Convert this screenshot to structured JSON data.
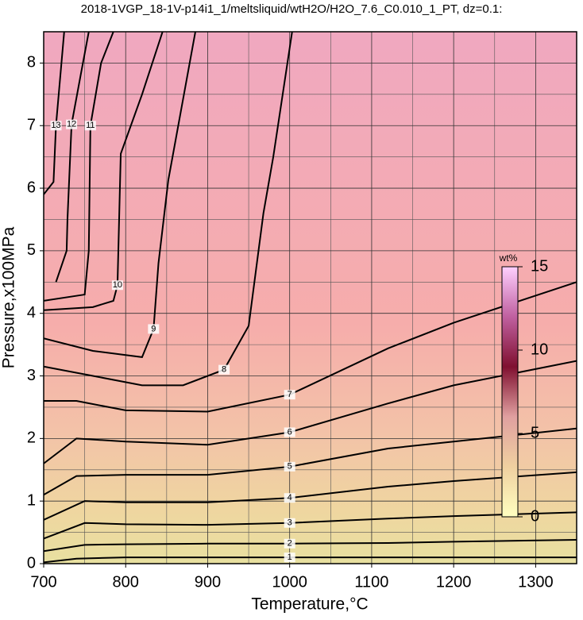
{
  "chart_data": {
    "type": "contour",
    "title": "2018-1VGP_18-1V-p14i1_1/meltsliquid/wtH2O/H2O_7.6_C0.010_1_PT, dz=0.1:",
    "xlabel": "Temperature,°C",
    "ylabel": "Pressure,x100MPa",
    "xlim": [
      700,
      1350
    ],
    "ylim": [
      0,
      8.5
    ],
    "xticks": [
      700,
      800,
      900,
      1000,
      1100,
      1200,
      1300
    ],
    "yticks": [
      0,
      1,
      2,
      3,
      4,
      5,
      6,
      7,
      8
    ],
    "xminorticks": [
      750,
      850,
      950,
      1050,
      1150,
      1250
    ],
    "yminorticks": [
      0.5,
      1.5,
      2.5,
      3.5,
      4.5,
      5.5,
      6.5,
      7.5
    ],
    "grid": true,
    "line_color": "#000000",
    "colorbar": {
      "label": "wt%",
      "lim": [
        0,
        15
      ],
      "ticks": [
        0,
        5,
        10,
        15
      ]
    },
    "contours": [
      {
        "level": 1,
        "x": [
          700,
          740,
          800,
          900,
          1000,
          1120,
          1200,
          1350
        ],
        "y": [
          0.02,
          0.08,
          0.1,
          0.1,
          0.1,
          0.1,
          0.1,
          0.1
        ]
      },
      {
        "level": 2,
        "x": [
          700,
          750,
          800,
          900,
          1000,
          1120,
          1200,
          1350
        ],
        "y": [
          0.2,
          0.3,
          0.31,
          0.32,
          0.32,
          0.33,
          0.35,
          0.38
        ]
      },
      {
        "level": 3,
        "x": [
          700,
          750,
          800,
          900,
          1000,
          1120,
          1200,
          1350
        ],
        "y": [
          0.4,
          0.65,
          0.63,
          0.62,
          0.65,
          0.72,
          0.76,
          0.82
        ]
      },
      {
        "level": 4,
        "x": [
          700,
          750,
          800,
          900,
          1000,
          1120,
          1200,
          1350
        ],
        "y": [
          0.7,
          1.0,
          0.98,
          0.98,
          1.05,
          1.23,
          1.32,
          1.46
        ]
      },
      {
        "level": 5,
        "x": [
          700,
          740,
          800,
          900,
          1000,
          1120,
          1200,
          1350
        ],
        "y": [
          1.1,
          1.4,
          1.42,
          1.42,
          1.55,
          1.84,
          1.95,
          2.16
        ]
      },
      {
        "level": 6,
        "x": [
          700,
          740,
          800,
          900,
          1000,
          1120,
          1200,
          1350
        ],
        "y": [
          1.6,
          2.0,
          1.95,
          1.9,
          2.1,
          2.56,
          2.85,
          3.24
        ]
      },
      {
        "level": 7,
        "x": [
          700,
          740,
          800,
          900,
          1000,
          1120,
          1200,
          1350
        ],
        "y": [
          2.6,
          2.6,
          2.45,
          2.43,
          2.7,
          3.44,
          3.85,
          4.5
        ]
      },
      {
        "level": 8,
        "x": [
          700,
          760,
          820,
          870,
          920,
          950,
          968,
          980,
          1003
        ],
        "y": [
          3.15,
          3.0,
          2.85,
          2.85,
          3.1,
          3.8,
          5.6,
          6.5,
          8.5
        ]
      },
      {
        "level": 9,
        "x": [
          700,
          760,
          820,
          834,
          840,
          852,
          885
        ],
        "y": [
          3.6,
          3.4,
          3.3,
          3.75,
          4.8,
          6.13,
          8.5
        ]
      },
      {
        "level": 10,
        "x": [
          700,
          760,
          785,
          790,
          794,
          820,
          845
        ],
        "y": [
          4.05,
          4.1,
          4.2,
          4.45,
          6.55,
          7.5,
          8.5
        ]
      },
      {
        "level": 11,
        "x": [
          700,
          750,
          755,
          757,
          770,
          785
        ],
        "y": [
          4.2,
          4.3,
          5.0,
          7.0,
          8.0,
          8.5
        ]
      },
      {
        "level": 12,
        "x": [
          715,
          728,
          729,
          734,
          745,
          755
        ],
        "y": [
          4.5,
          5.0,
          5.5,
          7.02,
          7.8,
          8.5
        ]
      },
      {
        "level": 13,
        "x": [
          700,
          712,
          715,
          725
        ],
        "y": [
          5.9,
          6.1,
          7.0,
          8.5
        ]
      }
    ]
  }
}
